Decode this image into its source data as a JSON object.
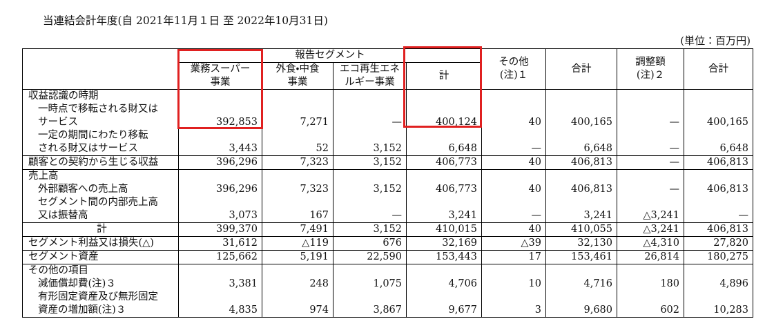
{
  "title": "当連結会計年度(自 2021年11月１日 至 2022年10月31日)",
  "unit": "(単位：百万円)",
  "table": {
    "header": {
      "group": "報告セグメント",
      "columns": [
        [
          "業務スーパー",
          "事業"
        ],
        [
          "外食・中食",
          "事業"
        ],
        [
          "エコ再生エネ",
          "ルギー事業"
        ],
        [
          "計"
        ],
        [
          "その他",
          "(注)１"
        ],
        [
          "合計"
        ],
        [
          "調整額",
          "(注)２"
        ],
        [
          "合計"
        ]
      ]
    },
    "rows": [
      {
        "label": [
          "収益認識の時期"
        ],
        "values": []
      },
      {
        "label": [
          "一時点で移転される財又は",
          "サービス"
        ],
        "values": [
          "392,853",
          "7,271",
          "—",
          "400,124",
          "40",
          "400,165",
          "—",
          "400,165"
        ]
      },
      {
        "label": [
          "一定の期間にわたり移転",
          "される財又はサービス"
        ],
        "values": [
          "3,443",
          "52",
          "3,152",
          "6,648",
          "—",
          "6,648",
          "—",
          "6,648"
        ]
      },
      {
        "label": [
          "顧客との契約から生じる収益"
        ],
        "values": [
          "396,296",
          "7,323",
          "3,152",
          "406,773",
          "40",
          "406,813",
          "—",
          "406,813"
        ]
      },
      {
        "label": [
          "売上高"
        ],
        "values": []
      },
      {
        "label": [
          "外部顧客への売上高"
        ],
        "values": [
          "396,296",
          "7,323",
          "3,152",
          "406,773",
          "40",
          "406,813",
          "—",
          "406,813"
        ]
      },
      {
        "label": [
          "セグメント間の内部売上高",
          "又は振替高"
        ],
        "values": [
          "3,073",
          "167",
          "—",
          "3,241",
          "—",
          "3,241",
          "△3,241",
          "—"
        ]
      },
      {
        "label": [
          "計"
        ],
        "values": [
          "399,370",
          "7,491",
          "3,152",
          "410,015",
          "40",
          "410,055",
          "△3,241",
          "406,813"
        ]
      },
      {
        "label": [
          "セグメント利益又は損失(△)"
        ],
        "values": [
          "31,612",
          "△119",
          "676",
          "32,169",
          "△39",
          "32,130",
          "△4,310",
          "27,820"
        ]
      },
      {
        "label": [
          "セグメント資産"
        ],
        "values": [
          "125,662",
          "5,191",
          "22,590",
          "153,443",
          "17",
          "153,461",
          "26,814",
          "180,275"
        ]
      },
      {
        "label": [
          "その他の項目"
        ],
        "values": []
      },
      {
        "label": [
          "減価償却費(注)３"
        ],
        "values": [
          "3,381",
          "248",
          "1,075",
          "4,706",
          "10",
          "4,716",
          "180",
          "4,896"
        ]
      },
      {
        "label": [
          "有形固定資産及び無形固定",
          "資産の増加額(注)３"
        ],
        "values": [
          "4,835",
          "974",
          "3,867",
          "9,677",
          "3",
          "9,680",
          "602",
          "10,283"
        ]
      }
    ]
  }
}
